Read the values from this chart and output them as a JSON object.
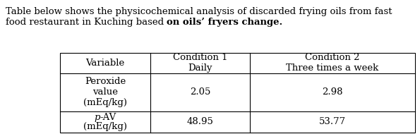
{
  "caption_line1": "Table below shows the physicochemical analysis of discarded frying oils from fast",
  "caption_line2_normal": "food restaurant in Kuching based ",
  "caption_line2_bold": "on oils’ fryers change.",
  "col_headers_line1": [
    "Variable",
    "Condition 1",
    "Condition 2"
  ],
  "col_headers_line2": [
    "",
    "Daily",
    "Three times a week"
  ],
  "row0_col0_lines": [
    "Peroxide",
    "value",
    "(mEq/kg)"
  ],
  "row0_col1": "2.05",
  "row0_col2": "2.98",
  "row1_col0_line1": "-AV",
  "row1_col0_line1_italic": "p",
  "row1_col0_line2": "(mEq/kg)",
  "row1_col1": "48.95",
  "row1_col2": "53.77",
  "font_family": "DejaVu Serif",
  "font_size": 9.5,
  "bg_color": "#ffffff",
  "text_color": "#000000",
  "fig_width": 5.95,
  "fig_height": 1.9,
  "dpi": 100
}
